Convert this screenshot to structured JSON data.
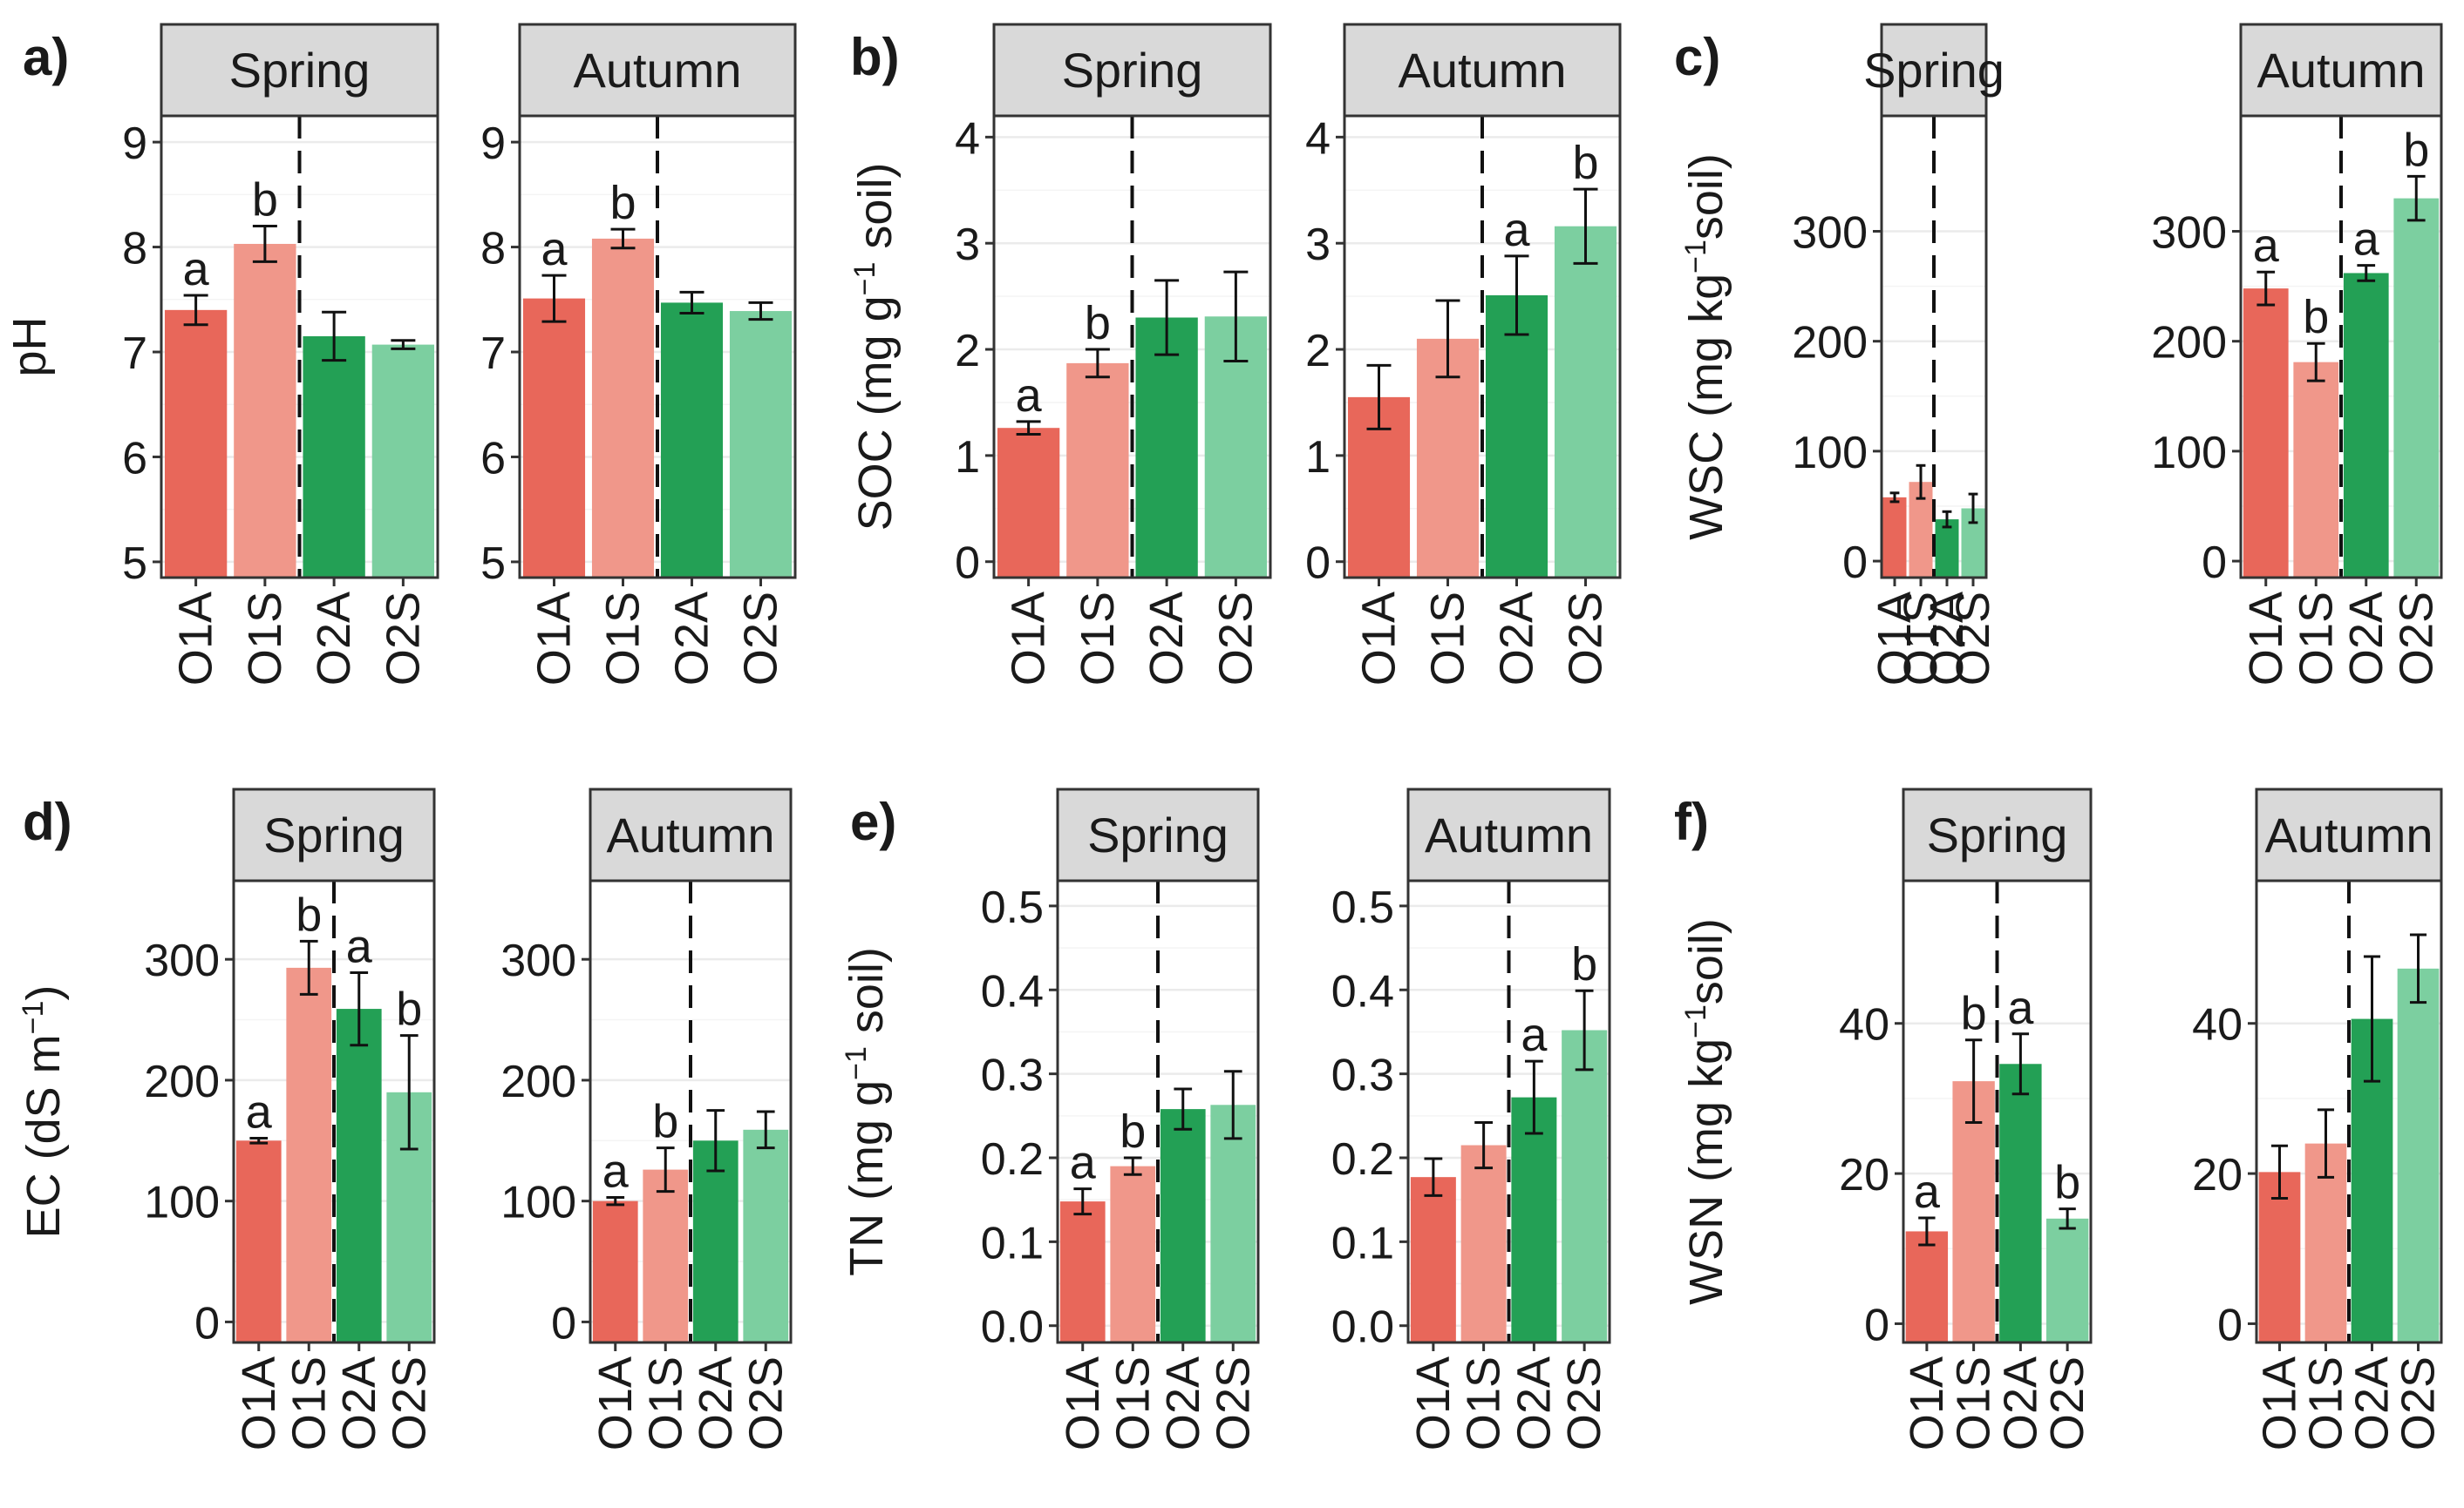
{
  "figure_colors": {
    "O1A": "#e8675a",
    "O1S": "#f0978a",
    "O2A": "#23a055",
    "O2S": "#7ccfa0",
    "strip": "#d9d9d9",
    "grid": "#ebebeb"
  },
  "chart_data": [
    {
      "type": "bar",
      "panel_label": "a)",
      "ylabel": "pH",
      "ylabel_sup": "",
      "ylabel_end": "",
      "ylim": [
        4.85,
        9.25
      ],
      "yticks": [
        5,
        6,
        7,
        8,
        9
      ],
      "tick_labels": [
        "5",
        "6",
        "7",
        "8",
        "9"
      ],
      "categories": [
        "O1A",
        "O1S",
        "O2A",
        "O2S"
      ],
      "facets": [
        {
          "title": "Spring",
          "values": [
            7.4,
            8.03,
            7.15,
            7.07
          ],
          "errors": [
            0.14,
            0.17,
            0.23,
            0.04
          ],
          "letters": [
            "a",
            "b",
            "",
            ""
          ]
        },
        {
          "title": "Autumn",
          "values": [
            7.51,
            8.08,
            7.47,
            7.39
          ],
          "errors": [
            0.22,
            0.09,
            0.1,
            0.08
          ],
          "letters": [
            "a",
            "b",
            "",
            ""
          ]
        }
      ]
    },
    {
      "type": "bar",
      "panel_label": "b)",
      "ylabel": "SOC (mg g",
      "ylabel_sup": "−1",
      "ylabel_end": " soil)",
      "ylim": [
        -0.15,
        4.2
      ],
      "yticks": [
        0,
        1,
        2,
        3,
        4
      ],
      "tick_labels": [
        "0",
        "1",
        "2",
        "3",
        "4"
      ],
      "categories": [
        "O1A",
        "O1S",
        "O2A",
        "O2S"
      ],
      "facets": [
        {
          "title": "Spring",
          "values": [
            1.26,
            1.87,
            2.3,
            2.31
          ],
          "errors": [
            0.06,
            0.13,
            0.35,
            0.42
          ],
          "letters": [
            "a",
            "b",
            "",
            ""
          ]
        },
        {
          "title": "Autumn",
          "values": [
            1.55,
            2.1,
            2.51,
            3.16
          ],
          "errors": [
            0.3,
            0.36,
            0.37,
            0.35
          ],
          "letters": [
            "",
            "",
            "a",
            "b"
          ]
        }
      ]
    },
    {
      "type": "bar",
      "panel_label": "c)",
      "ylabel": "WSC (mg kg",
      "ylabel_sup": "−1",
      "ylabel_end": "soil)",
      "ylim": [
        -15,
        405
      ],
      "yticks": [
        0,
        100,
        200,
        300
      ],
      "tick_labels": [
        "0",
        "100",
        "200",
        "300"
      ],
      "categories": [
        "O1A",
        "O1S",
        "O2A",
        "O2S"
      ],
      "facets": [
        {
          "title": "Spring",
          "values": [
            58,
            72,
            38,
            48
          ],
          "errors": [
            4,
            15,
            7,
            13
          ],
          "letters": [
            "",
            "",
            "",
            ""
          ]
        },
        {
          "title": "Autumn",
          "values": [
            248,
            181,
            262,
            330
          ],
          "errors": [
            15,
            17,
            7,
            20
          ],
          "letters": [
            "a",
            "b",
            "a",
            "b"
          ]
        }
      ]
    },
    {
      "type": "bar",
      "panel_label": "d)",
      "ylabel": "EC (dS  m",
      "ylabel_sup": "−1",
      "ylabel_end": ")",
      "ylim": [
        -17,
        365
      ],
      "yticks": [
        0,
        100,
        200,
        300
      ],
      "tick_labels": [
        "0",
        "100",
        "200",
        "300"
      ],
      "categories": [
        "O1A",
        "O1S",
        "O2A",
        "O2S"
      ],
      "facets": [
        {
          "title": "Spring",
          "values": [
            150,
            293,
            259,
            190
          ],
          "errors": [
            2,
            22,
            30,
            47
          ],
          "letters": [
            "a",
            "b",
            "a",
            "b"
          ]
        },
        {
          "title": "Autumn",
          "values": [
            100,
            126,
            150,
            159
          ],
          "errors": [
            3,
            18,
            25,
            15
          ],
          "letters": [
            "a",
            "b",
            "",
            ""
          ]
        }
      ]
    },
    {
      "type": "bar",
      "panel_label": "e)",
      "ylabel": "TN (mg g",
      "ylabel_sup": "−1",
      "ylabel_end": " soil)",
      "ylim": [
        -0.02,
        0.53
      ],
      "yticks": [
        0.0,
        0.1,
        0.2,
        0.3,
        0.4,
        0.5
      ],
      "tick_labels": [
        "0.0",
        "0.1",
        "0.2",
        "0.3",
        "0.4",
        "0.5"
      ],
      "categories": [
        "O1A",
        "O1S",
        "O2A",
        "O2S"
      ],
      "facets": [
        {
          "title": "Spring",
          "values": [
            0.148,
            0.19,
            0.258,
            0.263
          ],
          "errors": [
            0.015,
            0.01,
            0.024,
            0.04
          ],
          "letters": [
            "a",
            "b",
            "",
            ""
          ]
        },
        {
          "title": "Autumn",
          "values": [
            0.177,
            0.215,
            0.272,
            0.352
          ],
          "errors": [
            0.022,
            0.027,
            0.043,
            0.047
          ],
          "letters": [
            "",
            "",
            "a",
            "b"
          ]
        }
      ]
    },
    {
      "type": "bar",
      "panel_label": "f)",
      "ylabel": "WSN (mg kg",
      "ylabel_sup": "−1",
      "ylabel_end": "soil)",
      "ylim": [
        -2.5,
        59
      ],
      "yticks": [
        0,
        20,
        40
      ],
      "tick_labels": [
        "0",
        "20",
        "40"
      ],
      "categories": [
        "O1A",
        "O1S",
        "O2A",
        "O2S"
      ],
      "facets": [
        {
          "title": "Spring",
          "values": [
            12.3,
            32.3,
            34.6,
            14.0
          ],
          "errors": [
            1.8,
            5.5,
            4.0,
            1.3
          ],
          "letters": [
            "a",
            "b",
            "a",
            "b"
          ]
        },
        {
          "title": "Autumn",
          "values": [
            20.2,
            24.0,
            40.6,
            47.3
          ],
          "errors": [
            3.5,
            4.5,
            8.3,
            4.5
          ],
          "letters": [
            "",
            "",
            "",
            ""
          ]
        }
      ]
    }
  ]
}
